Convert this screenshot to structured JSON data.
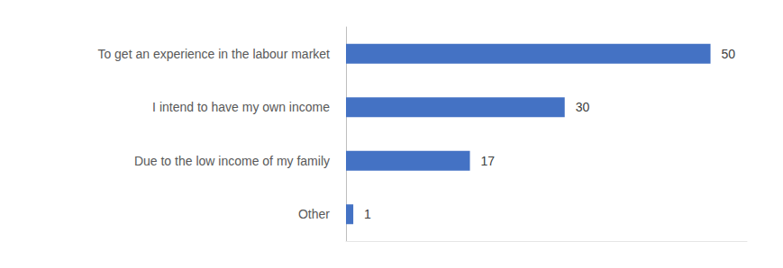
{
  "chart_data": {
    "type": "bar",
    "orientation": "horizontal",
    "categories": [
      "To get an experience in the labour market",
      "I intend to have my own income",
      "Due to the low income of my family",
      "Other"
    ],
    "values": [
      50,
      30,
      17,
      1
    ],
    "color": "#4472c4",
    "xlim": [
      0,
      55
    ],
    "grid": false,
    "data_labels": true,
    "tick_labels": false
  }
}
